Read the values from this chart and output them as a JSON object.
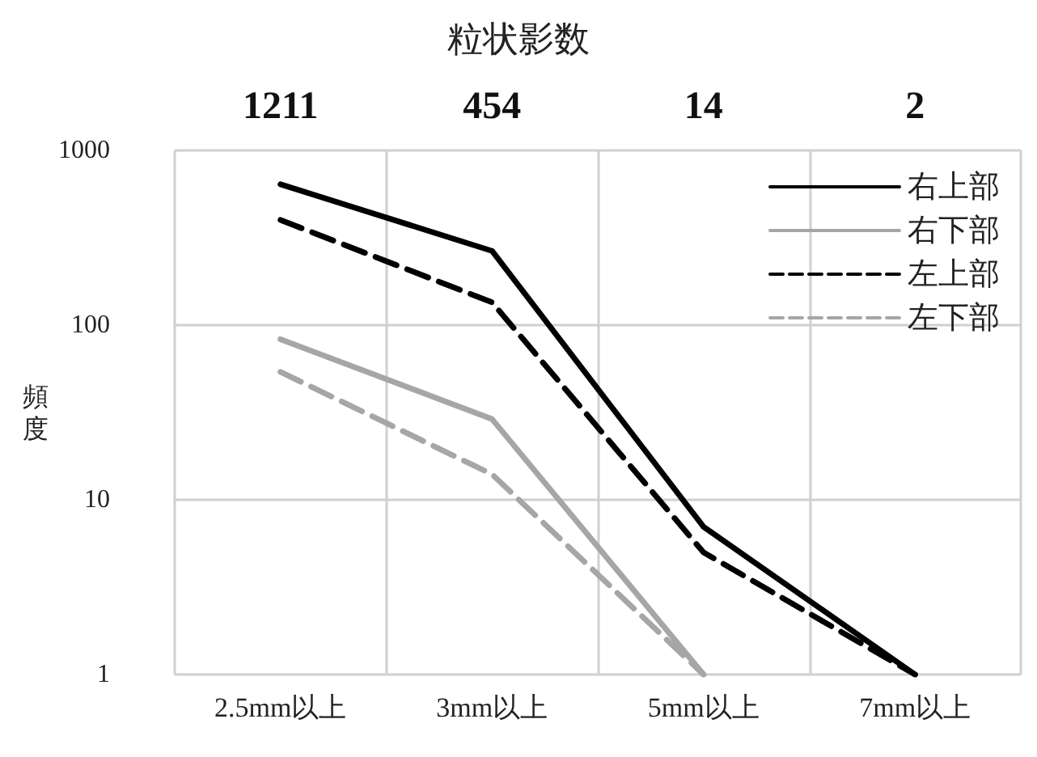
{
  "chart_data": {
    "type": "line",
    "ylabel": "頻度",
    "x2label": "粒状影数",
    "categories": [
      "2.5mm以上",
      "3mm以上",
      "5mm以上",
      "7mm以上"
    ],
    "series": [
      {
        "name": "右上部",
        "color": "#000000",
        "line_style": "solid",
        "values": [
          640,
          266,
          7,
          1
        ]
      },
      {
        "name": "右下部",
        "color": "#a6a6a6",
        "line_style": "solid",
        "values": [
          83,
          29,
          1,
          null
        ]
      },
      {
        "name": "左上部",
        "color": "#000000",
        "line_style": "dashed",
        "values": [
          400,
          135,
          5,
          1
        ]
      },
      {
        "name": "左下部",
        "color": "#a6a6a6",
        "line_style": "dashed",
        "values": [
          54,
          14,
          1,
          null
        ]
      }
    ],
    "annotations": [
      "1211",
      "454",
      "14",
      "2"
    ],
    "log": "y",
    "ylim": [
      1,
      1000
    ],
    "yticks": [
      1,
      10,
      100,
      1000
    ],
    "grid": true,
    "legend": "top right",
    "marker": "none"
  }
}
